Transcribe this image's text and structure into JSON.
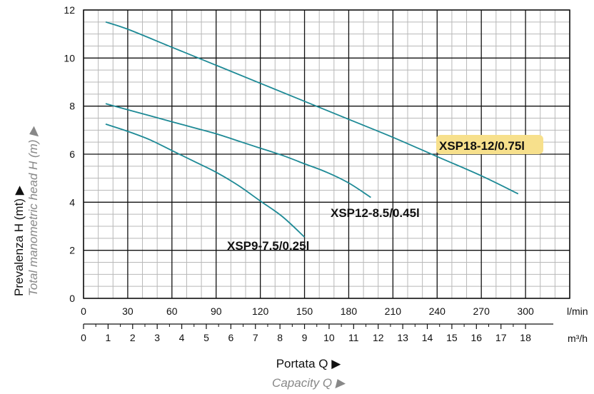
{
  "chart_data": {
    "type": "line",
    "x_axis_primary": {
      "unit": "l/min",
      "ticks": [
        "0",
        "30",
        "60",
        "90",
        "120",
        "150",
        "180",
        "210",
        "240",
        "270",
        "300"
      ],
      "range": [
        0,
        330
      ]
    },
    "x_axis_secondary": {
      "unit": "m³/h",
      "ticks": [
        "0",
        "1",
        "2",
        "3",
        "4",
        "5",
        "6",
        "7",
        "8",
        "9",
        "10",
        "11",
        "12",
        "13",
        "14",
        "15",
        "16",
        "17",
        "18"
      ]
    },
    "y_axis": {
      "ticks": [
        "0",
        "2",
        "4",
        "6",
        "8",
        "10",
        "12"
      ],
      "range": [
        0,
        12
      ]
    },
    "ylabel": "Prevalenza H (mt) ▶",
    "ylabel_secondary": "Total manometric head H (m) ▶",
    "xlabel": "Portata Q ▶",
    "xlabel_secondary": "Capacity Q ▶",
    "grid": true,
    "series": [
      {
        "name": "XSP9-7.5/0.25l",
        "x": [
          15,
          30,
          45,
          60,
          75,
          90,
          105,
          120,
          135,
          150
        ],
        "y": [
          7.25,
          6.95,
          6.6,
          6.15,
          5.7,
          5.25,
          4.7,
          4.05,
          3.4,
          2.55
        ]
      },
      {
        "name": "XSP12-8.5/0.45l",
        "x": [
          15,
          30,
          45,
          60,
          75,
          90,
          105,
          120,
          135,
          150,
          165,
          180,
          195
        ],
        "y": [
          8.1,
          7.85,
          7.6,
          7.35,
          7.1,
          6.85,
          6.55,
          6.25,
          5.95,
          5.6,
          5.25,
          4.8,
          4.2
        ]
      },
      {
        "name": "XSP18-12/0.75l",
        "x": [
          15,
          30,
          60,
          90,
          120,
          150,
          180,
          210,
          240,
          270,
          295
        ],
        "y": [
          11.5,
          11.2,
          10.45,
          9.7,
          8.95,
          8.2,
          7.45,
          6.7,
          5.9,
          5.1,
          4.35
        ]
      }
    ],
    "colors": {
      "curve": "#1e8a96",
      "highlight": "#f7e08c",
      "grid_minor": "#b8b8b8",
      "grid_major": "#111111"
    }
  }
}
